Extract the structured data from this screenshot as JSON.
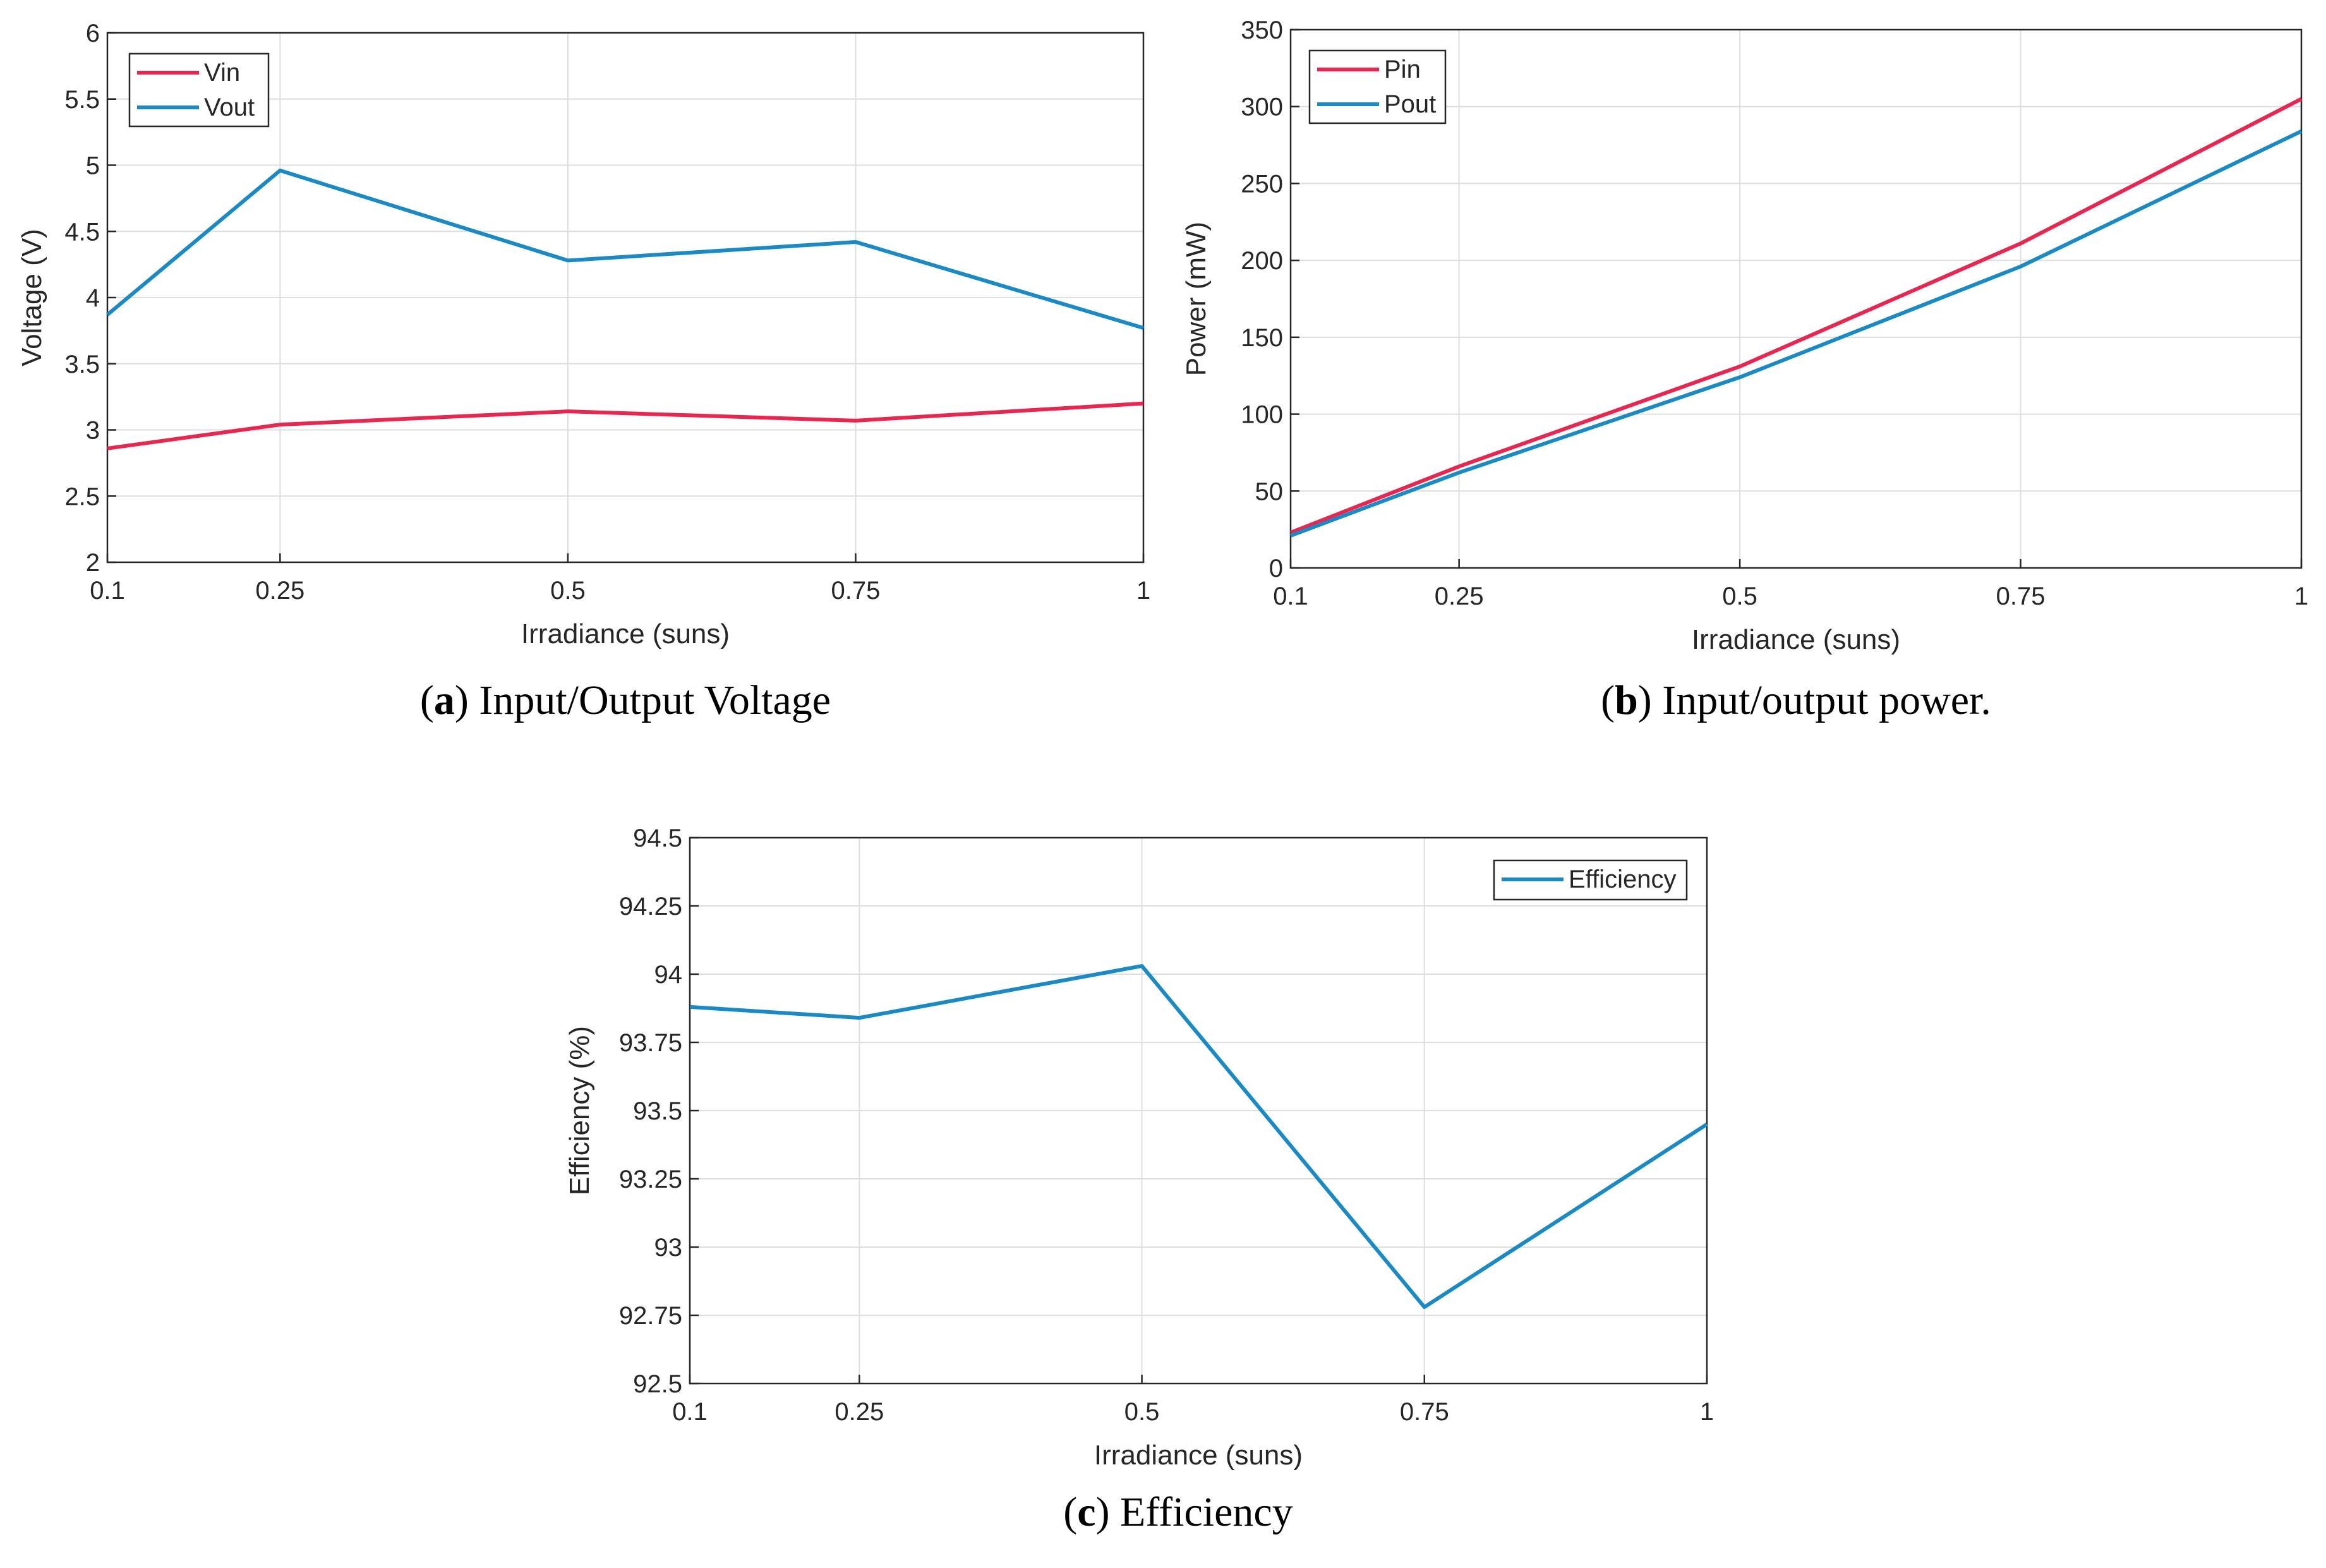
{
  "chart_data": [
    {
      "type": "line",
      "caption_letter": "a",
      "caption_text": "Input/Output Voltage",
      "x": [
        0.1,
        0.25,
        0.5,
        0.75,
        1
      ],
      "x_tick_labels": [
        "0.1",
        "0.25",
        "0.5",
        "0.75",
        "1"
      ],
      "y_ticks": [
        2,
        2.5,
        3,
        3.5,
        4,
        4.5,
        5,
        5.5,
        6
      ],
      "y_tick_labels": [
        "2",
        "2.5",
        "3",
        "3.5",
        "4",
        "4.5",
        "5",
        "5.5",
        "6"
      ],
      "ylim": [
        2,
        6
      ],
      "xlabel": "Irradiance (suns)",
      "ylabel": "Voltage (V)",
      "grid": true,
      "legend_position": "top-left",
      "series": [
        {
          "name": "Vin",
          "color": "#e8264f",
          "values": [
            2.86,
            3.04,
            3.14,
            3.07,
            3.2
          ]
        },
        {
          "name": "Vout",
          "color": "#1a8ac7",
          "values": [
            3.87,
            4.96,
            4.28,
            4.42,
            3.77
          ]
        }
      ]
    },
    {
      "type": "line",
      "caption_letter": "b",
      "caption_text": "Input/output power.",
      "x": [
        0.1,
        0.25,
        0.5,
        0.75,
        1
      ],
      "x_tick_labels": [
        "0.1",
        "0.25",
        "0.5",
        "0.75",
        "1"
      ],
      "y_ticks": [
        0,
        50,
        100,
        150,
        200,
        250,
        300,
        350
      ],
      "y_tick_labels": [
        "0",
        "50",
        "100",
        "150",
        "200",
        "250",
        "300",
        "350"
      ],
      "ylim": [
        0,
        350
      ],
      "xlabel": "Irradiance (suns)",
      "ylabel": "Power (mW)",
      "grid": true,
      "legend_position": "top-left",
      "series": [
        {
          "name": "Pin",
          "color": "#e8264f",
          "values": [
            23,
            66,
            131,
            211,
            305
          ]
        },
        {
          "name": "Pout",
          "color": "#1a8ac7",
          "values": [
            21,
            62,
            124,
            196,
            284
          ]
        }
      ]
    },
    {
      "type": "line",
      "caption_letter": "c",
      "caption_text": "Efficiency",
      "x": [
        0.1,
        0.25,
        0.5,
        0.75,
        1
      ],
      "x_tick_labels": [
        "0.1",
        "0.25",
        "0.5",
        "0.75",
        "1"
      ],
      "y_ticks": [
        92.5,
        92.75,
        93,
        93.25,
        93.5,
        93.75,
        94,
        94.25,
        94.5
      ],
      "y_tick_labels": [
        "92.5",
        "92.75",
        "93",
        "93.25",
        "93.5",
        "93.75",
        "94",
        "94.25",
        "94.5"
      ],
      "ylim": [
        92.5,
        94.5
      ],
      "xlabel": "Irradiance (suns)",
      "ylabel": "Efficiency (%)",
      "grid": true,
      "legend_position": "top-right",
      "series": [
        {
          "name": "Efficiency",
          "color": "#1a8ac7",
          "values": [
            93.88,
            93.84,
            94.03,
            92.78,
            93.45
          ]
        }
      ]
    }
  ]
}
